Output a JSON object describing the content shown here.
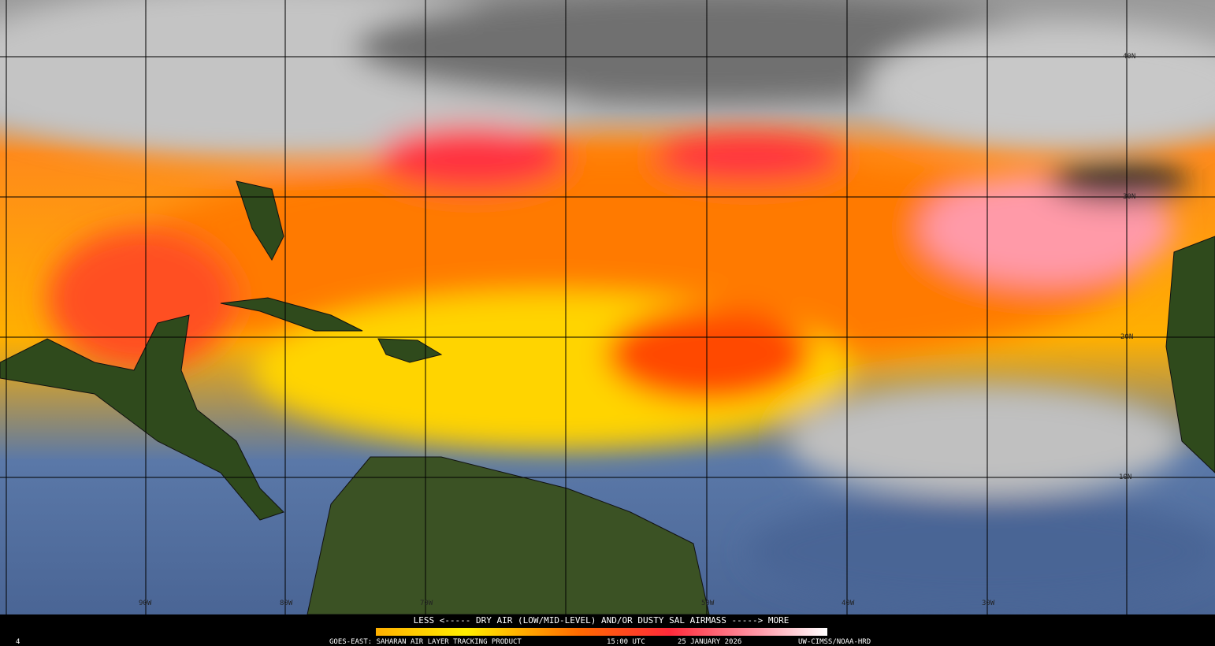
{
  "map": {
    "lat_labels": [
      "40N",
      "30N",
      "20N",
      "10N"
    ],
    "lon_labels": [
      "90W",
      "80W",
      "70W",
      "50W",
      "40W",
      "30W"
    ],
    "legend_caption": "LESS <----- DRY AIR (LOW/MID-LEVEL) AND/OR DUSTY SAL AIRMASS -----> MORE",
    "footer": {
      "product": "GOES-EAST: SAHARAN AIR LAYER TRACKING PRODUCT",
      "time": "15:00 UTC",
      "date": "25 JANUARY 2026",
      "credit": "UW-CIMSS/NOAA-HRD",
      "frame": "4"
    }
  }
}
